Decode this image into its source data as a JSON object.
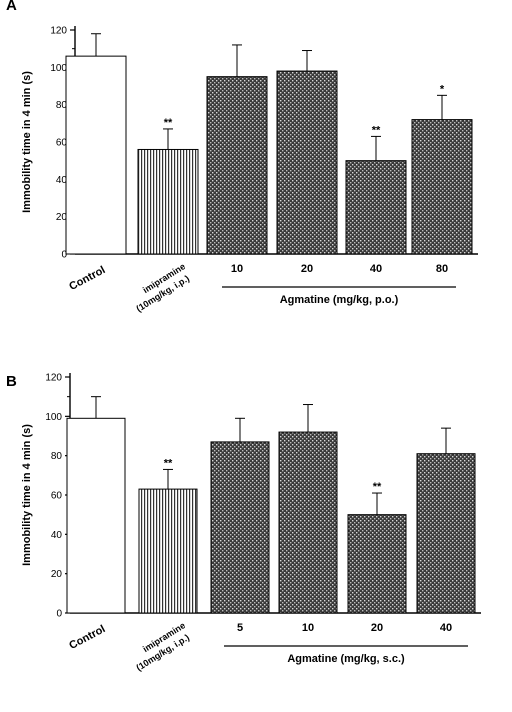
{
  "chart_data": [
    {
      "type": "bar",
      "panel_label": "A",
      "ylabel": "Immobility time in 4 min (s)",
      "ylim": [
        0,
        120
      ],
      "yticks": [
        0,
        20,
        40,
        60,
        80,
        100,
        120
      ],
      "categories": [
        "Control",
        "imipramine (10mg/kg, i.p.)",
        "10",
        "20",
        "40",
        "80"
      ],
      "values": [
        106,
        56,
        95,
        98,
        50,
        72
      ],
      "errors": [
        12,
        11,
        17,
        11,
        13,
        13
      ],
      "significance": [
        "",
        "**",
        "",
        "",
        "**",
        "*"
      ],
      "group_label": "Agmatine (mg/kg, p.o.)"
    },
    {
      "type": "bar",
      "panel_label": "B",
      "ylabel": "Immobility time in 4 min (s)",
      "ylim": [
        0,
        120
      ],
      "yticks": [
        0,
        20,
        40,
        60,
        80,
        100,
        120
      ],
      "categories": [
        "Control",
        "imipramine (10mg/kg, i.p.)",
        "5",
        "10",
        "20",
        "40"
      ],
      "values": [
        99,
        63,
        87,
        92,
        50,
        81
      ],
      "errors": [
        11,
        10,
        12,
        14,
        11,
        13
      ],
      "significance": [
        "",
        "**",
        "",
        "",
        "**",
        ""
      ],
      "group_label": "Agmatine (mg/kg, s.c.)"
    }
  ]
}
